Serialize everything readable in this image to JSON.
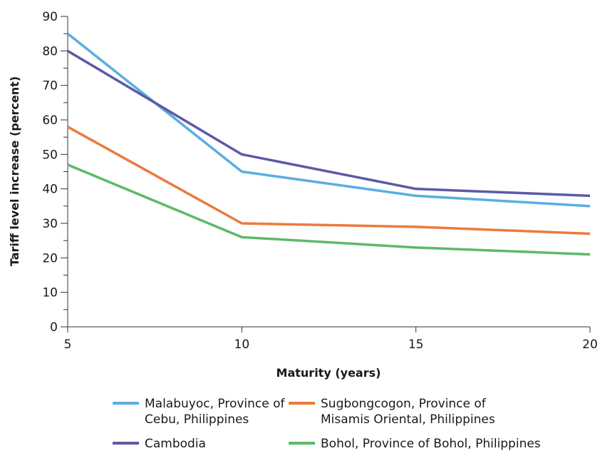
{
  "chart_data": {
    "type": "line",
    "xlabel": "Maturity (years)",
    "ylabel": "Tariff level increase (percent)",
    "x": [
      5,
      10,
      15,
      20
    ],
    "xlim": [
      5,
      20
    ],
    "ylim": [
      0,
      90
    ],
    "x_ticks": [
      5,
      10,
      15,
      20
    ],
    "y_ticks": [
      0,
      10,
      20,
      30,
      40,
      50,
      60,
      70,
      80,
      90
    ],
    "grid": false,
    "legend_position": "bottom",
    "series": [
      {
        "name": "Malabuyoc, Province of Cebu, Philippines",
        "legend_lines": [
          "Malabuyoc, Province of",
          "Cebu, Philippines"
        ],
        "color": "#5aaee0",
        "values": [
          85,
          45,
          38,
          35
        ]
      },
      {
        "name": "Cambodia",
        "legend_lines": [
          "Cambodia"
        ],
        "color": "#5b5ba3",
        "values": [
          80,
          50,
          40,
          38
        ]
      },
      {
        "name": "Sugbongcogon, Province of Misamis Oriental, Philippines",
        "legend_lines": [
          "Sugbongcogon, Province of",
          "Misamis Oriental, Philippines"
        ],
        "color": "#ec7a3c",
        "values": [
          58,
          30,
          29,
          27
        ]
      },
      {
        "name": "Bohol, Province of Bohol, Philippines",
        "legend_lines": [
          "Bohol, Province of Bohol, Philippines"
        ],
        "color": "#5cba6a",
        "values": [
          47,
          26,
          23,
          21
        ]
      }
    ]
  }
}
